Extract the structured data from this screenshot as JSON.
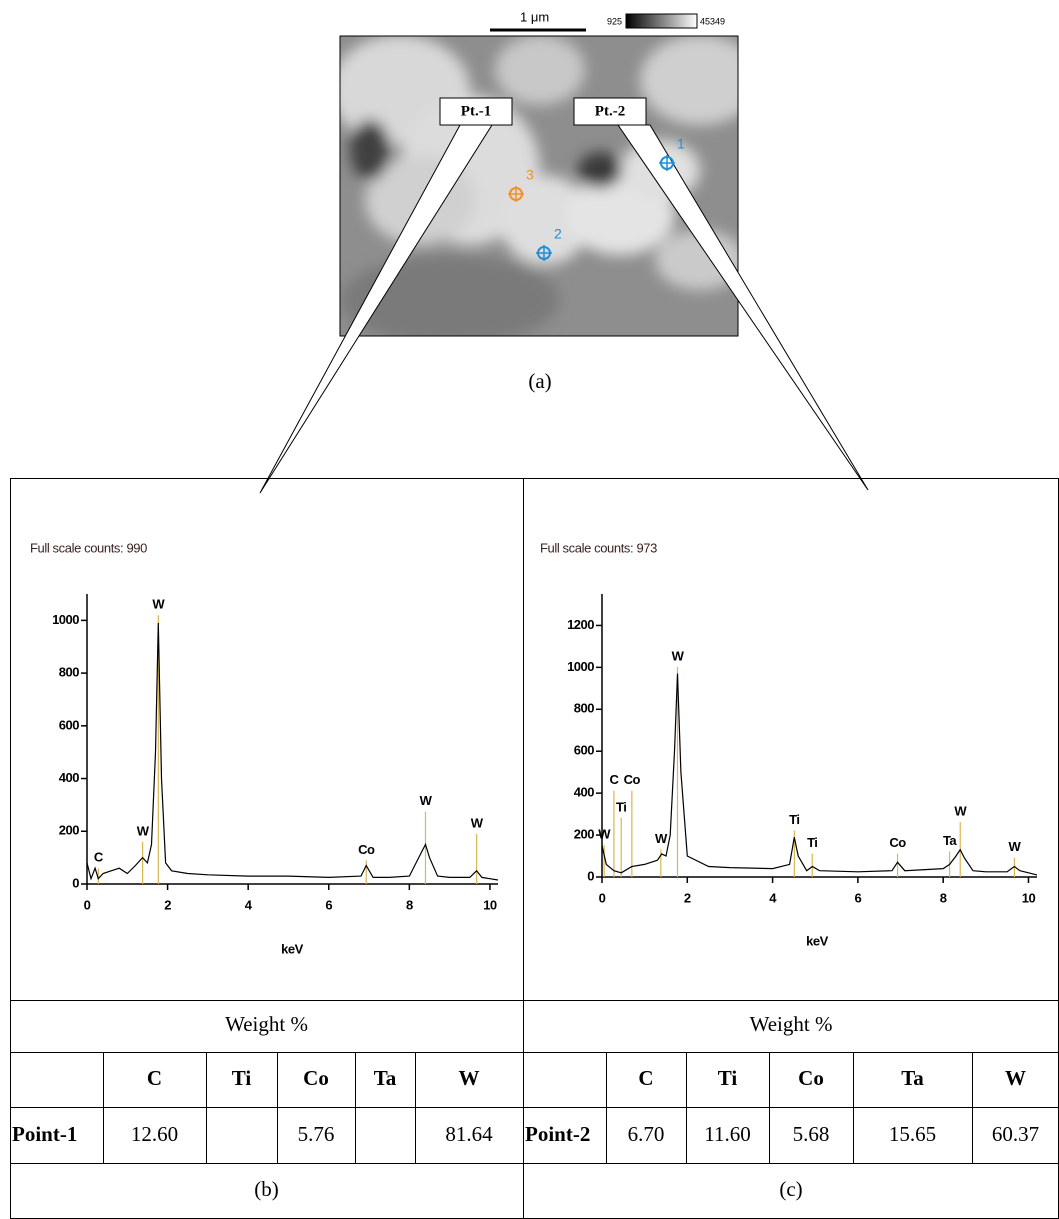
{
  "image": {
    "scale_bar": "1 μm",
    "intensity_min": "925",
    "intensity_max": "45349",
    "callouts": [
      "Pt.-1",
      "Pt.-2"
    ],
    "points": [
      {
        "label": "1",
        "color": "#1f8fd6"
      },
      {
        "label": "2",
        "color": "#1f8fd6"
      },
      {
        "label": "3",
        "color": "#f0902a"
      }
    ],
    "caption": "(a)"
  },
  "chart_data": [
    {
      "type": "line",
      "title": "Full scale counts: 990",
      "x_label": "keV",
      "color": "#000000",
      "peak_color": "#d9b650",
      "xlim": [
        0,
        10.2
      ],
      "xticks": [
        0,
        2,
        4,
        6,
        8,
        10
      ],
      "ylim": [
        0,
        1100
      ],
      "yticks": [
        0,
        200,
        400,
        600,
        800,
        1000
      ],
      "x": [
        0,
        0.1,
        0.2,
        0.28,
        0.4,
        0.6,
        0.8,
        1.0,
        1.2,
        1.38,
        1.5,
        1.6,
        1.7,
        1.77,
        1.85,
        1.95,
        2.1,
        2.5,
        3,
        4,
        5,
        6,
        6.8,
        6.93,
        7.1,
        7.5,
        8,
        8.3,
        8.4,
        8.5,
        8.7,
        9,
        9.5,
        9.67,
        9.8,
        10,
        10.2
      ],
      "values": [
        80,
        20,
        60,
        20,
        40,
        50,
        60,
        40,
        70,
        100,
        80,
        150,
        500,
        990,
        400,
        80,
        50,
        40,
        35,
        30,
        30,
        25,
        30,
        70,
        25,
        25,
        30,
        120,
        150,
        100,
        30,
        25,
        25,
        50,
        25,
        20,
        15
      ],
      "peaks": [
        {
          "label": "C",
          "x": 0.28,
          "y": 90
        },
        {
          "label": "W",
          "x": 1.38,
          "y": 190
        },
        {
          "label": "W",
          "x": 1.77,
          "y": 1050
        },
        {
          "label": "Co",
          "x": 6.93,
          "y": 120
        },
        {
          "label": "W",
          "x": 8.4,
          "y": 305
        },
        {
          "label": "W",
          "x": 9.67,
          "y": 220
        }
      ]
    },
    {
      "type": "line",
      "title": "Full scale counts: 973",
      "x_label": "keV",
      "color": "#000000",
      "peak_color": "#d9b650",
      "xlim": [
        0,
        10.2
      ],
      "xticks": [
        0,
        2,
        4,
        6,
        8,
        10
      ],
      "ylim": [
        0,
        1350
      ],
      "yticks": [
        0,
        200,
        400,
        600,
        800,
        1000,
        1200
      ],
      "x": [
        0,
        0.1,
        0.28,
        0.45,
        0.7,
        1.0,
        1.3,
        1.4,
        1.5,
        1.6,
        1.7,
        1.77,
        1.85,
        2.0,
        2.5,
        3,
        4,
        4.4,
        4.51,
        4.6,
        4.8,
        4.93,
        5.1,
        6,
        6.8,
        6.93,
        7.1,
        8,
        8.15,
        8.3,
        8.4,
        8.5,
        8.7,
        9,
        9.5,
        9.67,
        9.8,
        10,
        10.2
      ],
      "values": [
        150,
        60,
        30,
        20,
        50,
        60,
        80,
        110,
        100,
        200,
        600,
        970,
        500,
        100,
        50,
        45,
        40,
        60,
        190,
        100,
        30,
        50,
        30,
        25,
        30,
        70,
        30,
        40,
        60,
        100,
        130,
        90,
        30,
        25,
        25,
        50,
        30,
        20,
        10
      ],
      "peaks": [
        {
          "label": "W",
          "x": 0.05,
          "y": 190
        },
        {
          "label": "C",
          "x": 0.28,
          "y": 450
        },
        {
          "label": "Co",
          "x": 0.7,
          "y": 450
        },
        {
          "label": "Ti",
          "x": 0.45,
          "y": 320
        },
        {
          "label": "W",
          "x": 1.38,
          "y": 170
        },
        {
          "label": "W",
          "x": 1.77,
          "y": 1040
        },
        {
          "label": "Ti",
          "x": 4.51,
          "y": 260
        },
        {
          "label": "Ti",
          "x": 4.93,
          "y": 150
        },
        {
          "label": "Co",
          "x": 6.93,
          "y": 150
        },
        {
          "label": "Ta",
          "x": 8.15,
          "y": 160
        },
        {
          "label": "W",
          "x": 8.4,
          "y": 300
        },
        {
          "label": "W",
          "x": 9.67,
          "y": 130
        }
      ]
    }
  ],
  "tables": [
    {
      "header": "Weight %",
      "columns": [
        "C",
        "Ti",
        "Co",
        "Ta",
        "W"
      ],
      "row": {
        "label": "Point-1",
        "values": [
          "12.60",
          null,
          "5.76",
          null,
          "81.64"
        ]
      },
      "caption": "(b)"
    },
    {
      "header": "Weight %",
      "columns": [
        "C",
        "Ti",
        "Co",
        "Ta",
        "W"
      ],
      "row": {
        "label": "Point-2",
        "values": [
          "6.70",
          "11.60",
          "5.68",
          "15.65",
          "60.37"
        ]
      },
      "caption": "(c)"
    }
  ]
}
